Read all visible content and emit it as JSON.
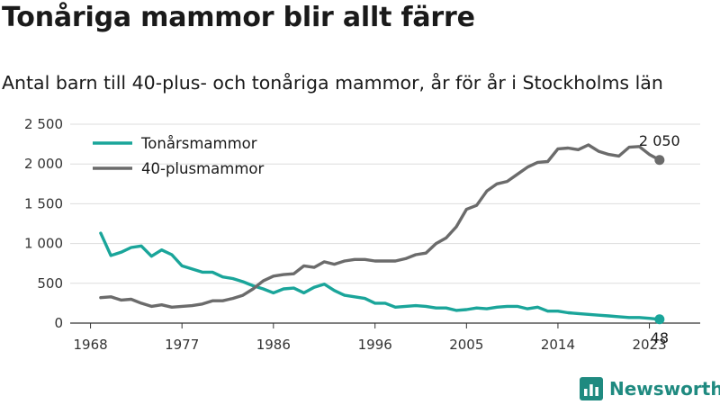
{
  "header": {
    "title": "Tonåriga mammor blir allt färre",
    "subtitle": "Antal barn till 40-plus- och tonåriga mammor, år för år i Stockholms län"
  },
  "brand": {
    "name": "Newsworthy",
    "icon": "bar-chart-icon",
    "color": "#1f8a80"
  },
  "chart_data": {
    "type": "line",
    "title": "",
    "xlabel": "",
    "ylabel": "",
    "xlim": [
      1966,
      2028
    ],
    "ylim": [
      0,
      2500
    ],
    "x_ticks": [
      1968,
      1977,
      1986,
      1996,
      2005,
      2014,
      2023
    ],
    "x_tick_labels": [
      "1968",
      "1977",
      "1986",
      "1996",
      "2005",
      "2014",
      "2023"
    ],
    "y_ticks": [
      0,
      500,
      1000,
      1500,
      2000,
      2500
    ],
    "y_tick_labels": [
      "0",
      "500",
      "1 000",
      "1 500",
      "2 000",
      "2 500"
    ],
    "grid": "horizontal",
    "legend": "top-left",
    "x": [
      1969,
      1970,
      1971,
      1972,
      1973,
      1974,
      1975,
      1976,
      1977,
      1978,
      1979,
      1980,
      1981,
      1982,
      1983,
      1984,
      1985,
      1986,
      1987,
      1988,
      1989,
      1990,
      1991,
      1992,
      1993,
      1994,
      1995,
      1996,
      1997,
      1998,
      1999,
      2000,
      2001,
      2002,
      2003,
      2004,
      2005,
      2006,
      2007,
      2008,
      2009,
      2010,
      2011,
      2012,
      2013,
      2014,
      2015,
      2016,
      2017,
      2018,
      2019,
      2020,
      2021,
      2022,
      2023,
      2024
    ],
    "series": [
      {
        "name": "Tonårsmammor",
        "color": "#1aa59a",
        "values": [
          1130,
          850,
          890,
          950,
          970,
          840,
          920,
          860,
          720,
          680,
          640,
          640,
          580,
          560,
          520,
          470,
          430,
          380,
          430,
          440,
          380,
          450,
          490,
          410,
          350,
          330,
          310,
          250,
          250,
          200,
          210,
          220,
          210,
          190,
          190,
          160,
          170,
          190,
          180,
          200,
          210,
          210,
          180,
          200,
          150,
          150,
          130,
          120,
          110,
          100,
          90,
          80,
          70,
          70,
          60,
          48
        ],
        "end_label": "48"
      },
      {
        "name": "40-plusmammor",
        "color": "#6b6b6b",
        "values": [
          320,
          330,
          290,
          300,
          250,
          210,
          230,
          200,
          210,
          220,
          240,
          280,
          280,
          310,
          350,
          430,
          530,
          590,
          610,
          620,
          720,
          700,
          770,
          740,
          780,
          800,
          800,
          780,
          780,
          780,
          810,
          860,
          880,
          1000,
          1070,
          1210,
          1430,
          1480,
          1660,
          1750,
          1780,
          1870,
          1960,
          2020,
          2030,
          2190,
          2200,
          2180,
          2240,
          2160,
          2120,
          2100,
          2210,
          2220,
          2120,
          2050
        ],
        "end_label": "2 050"
      }
    ]
  }
}
